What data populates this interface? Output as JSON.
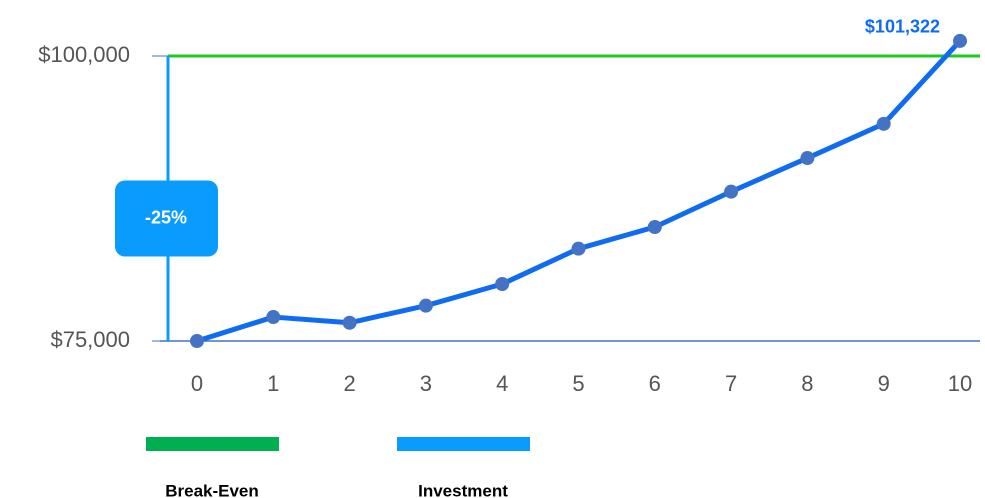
{
  "chart_data": {
    "type": "line",
    "x": [
      0,
      1,
      2,
      3,
      4,
      5,
      6,
      7,
      8,
      9,
      10
    ],
    "xlim": [
      0,
      10
    ],
    "xticks": [
      0,
      1,
      2,
      3,
      4,
      5,
      6,
      7,
      8,
      9,
      10
    ],
    "ylim": [
      75000,
      100000
    ],
    "yticks": [
      {
        "value": 75000,
        "label": "$75,000"
      },
      {
        "value": 100000,
        "label": "$100,000"
      }
    ],
    "series": [
      {
        "name": "Investment",
        "color": "#0f6cf2",
        "marker_color": "#4472c4",
        "values": [
          75000,
          77100,
          76600,
          78100,
          80000,
          83100,
          85000,
          88100,
          91050,
          94050,
          101322
        ],
        "value_labels": [
          null,
          null,
          null,
          null,
          null,
          null,
          null,
          null,
          null,
          null,
          "$101,322"
        ]
      }
    ],
    "reference_lines": [
      {
        "name": "Break-Even",
        "color": "#1fc91f",
        "value": 100000
      }
    ],
    "annotations": [
      {
        "text": "-25%",
        "color": "#0a9bff"
      }
    ],
    "legend_colors": {
      "Break-Even": "#00b050",
      "Investment": "#0a9bff"
    },
    "legend": "bottom"
  }
}
